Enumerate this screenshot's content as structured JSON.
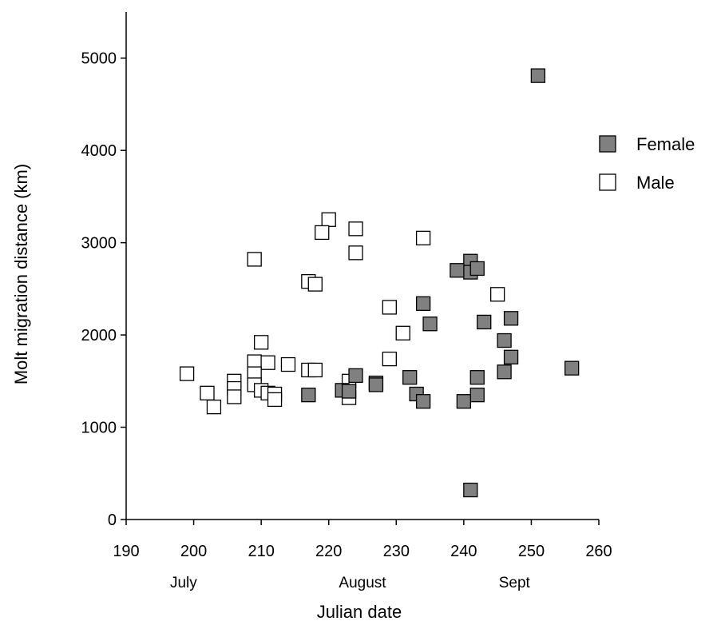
{
  "chart_data": {
    "type": "scatter",
    "title": "",
    "xlabel": "Julian date",
    "ylabel": "Molt migration distance (km)",
    "xlim": [
      190,
      260
    ],
    "ylim": [
      0,
      5500
    ],
    "x_ticks": [
      190,
      200,
      210,
      220,
      230,
      240,
      250,
      260
    ],
    "y_ticks": [
      0,
      1000,
      2000,
      3000,
      4000,
      5000
    ],
    "month_labels": [
      {
        "label": "July",
        "x": 198.5
      },
      {
        "label": "August",
        "x": 225
      },
      {
        "label": "Sept",
        "x": 247.5
      }
    ],
    "legend_position": "right",
    "grid": false,
    "series": [
      {
        "name": "Female",
        "color": "#808080",
        "marker": "square-filled",
        "points": [
          [
            251,
            4810
          ],
          [
            241,
            2800
          ],
          [
            241,
            2680
          ],
          [
            239,
            2700
          ],
          [
            242,
            2720
          ],
          [
            234,
            2340
          ],
          [
            235,
            2120
          ],
          [
            243,
            2140
          ],
          [
            247,
            2180
          ],
          [
            246,
            1940
          ],
          [
            247,
            1760
          ],
          [
            246,
            1600
          ],
          [
            256,
            1640
          ],
          [
            224,
            1560
          ],
          [
            232,
            1540
          ],
          [
            242,
            1540
          ],
          [
            227,
            1480
          ],
          [
            227,
            1460
          ],
          [
            222,
            1400
          ],
          [
            223,
            1390
          ],
          [
            217,
            1350
          ],
          [
            233,
            1360
          ],
          [
            242,
            1350
          ],
          [
            234,
            1280
          ],
          [
            240,
            1280
          ],
          [
            241,
            320
          ]
        ]
      },
      {
        "name": "Male",
        "color": "#ffffff",
        "marker": "square-open",
        "points": [
          [
            220,
            3250
          ],
          [
            224,
            3150
          ],
          [
            219,
            3110
          ],
          [
            234,
            3050
          ],
          [
            224,
            2890
          ],
          [
            209,
            2820
          ],
          [
            217,
            2580
          ],
          [
            218,
            2550
          ],
          [
            245,
            2440
          ],
          [
            229,
            2300
          ],
          [
            231,
            2020
          ],
          [
            210,
            1920
          ],
          [
            229,
            1740
          ],
          [
            209,
            1710
          ],
          [
            211,
            1700
          ],
          [
            214,
            1680
          ],
          [
            217,
            1620
          ],
          [
            218,
            1620
          ],
          [
            199,
            1580
          ],
          [
            209,
            1580
          ],
          [
            206,
            1500
          ],
          [
            223,
            1500
          ],
          [
            206,
            1420
          ],
          [
            209,
            1460
          ],
          [
            210,
            1400
          ],
          [
            202,
            1370
          ],
          [
            211,
            1370
          ],
          [
            212,
            1360
          ],
          [
            212,
            1300
          ],
          [
            206,
            1330
          ],
          [
            223,
            1320
          ],
          [
            203,
            1220
          ]
        ]
      }
    ]
  }
}
